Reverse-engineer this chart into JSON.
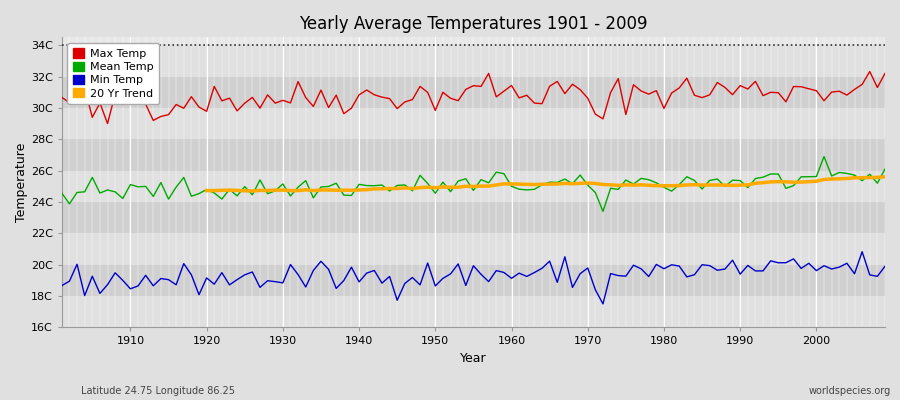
{
  "title": "Yearly Average Temperatures 1901 - 2009",
  "xlabel": "Year",
  "ylabel": "Temperature",
  "subtitle_left": "Latitude 24.75 Longitude 86.25",
  "subtitle_right": "worldspecies.org",
  "year_start": 1901,
  "year_end": 2009,
  "ylim": [
    16,
    34.5
  ],
  "yticks": [
    16,
    18,
    20,
    22,
    24,
    26,
    28,
    30,
    32,
    34
  ],
  "ytick_labels": [
    "16C",
    "18C",
    "20C",
    "22C",
    "24C",
    "26C",
    "28C",
    "30C",
    "32C",
    "34C"
  ],
  "hline_y": 34,
  "max_temp_color": "#dd0000",
  "mean_temp_color": "#00aa00",
  "min_temp_color": "#0000cc",
  "trend_color": "#ffaa00",
  "trend_linewidth": 2.5,
  "data_linewidth": 1.0,
  "bg_color": "#e0e0e0",
  "plot_bg_color": "#e8e8e8",
  "band_color1": "#e0e0e0",
  "band_color2": "#d0d0d0",
  "legend_labels": [
    "Max Temp",
    "Mean Temp",
    "Min Temp",
    "20 Yr Trend"
  ],
  "legend_colors": [
    "#dd0000",
    "#00aa00",
    "#0000cc",
    "#ffaa00"
  ]
}
